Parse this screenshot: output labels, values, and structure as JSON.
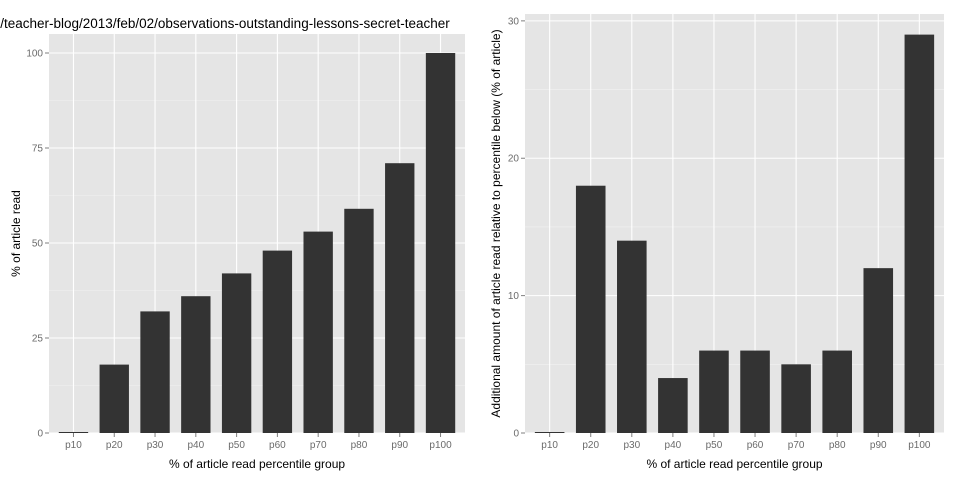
{
  "chart_data": [
    {
      "type": "bar",
      "title": "/teacher-blog/2013/feb/02/observations-outstanding-lessons-secret-teacher",
      "xlabel": "% of article read percentile group",
      "ylabel": "% of article read",
      "categories": [
        "p10",
        "p20",
        "p30",
        "p40",
        "p50",
        "p60",
        "p70",
        "p80",
        "p90",
        "p100"
      ],
      "values": [
        0,
        18,
        32,
        36,
        42,
        48,
        53,
        59,
        71,
        100
      ],
      "ylim": [
        0,
        105
      ],
      "yticks": [
        0,
        25,
        50,
        75,
        100
      ],
      "grid": true
    },
    {
      "type": "bar",
      "title": "",
      "xlabel": "% of article read percentile group",
      "ylabel": "Additional amount of article read relative to percentile below (% of article)",
      "categories": [
        "p10",
        "p20",
        "p30",
        "p40",
        "p50",
        "p60",
        "p70",
        "p80",
        "p90",
        "p100"
      ],
      "values": [
        0,
        18,
        14,
        4,
        6,
        6,
        5,
        6,
        12,
        29
      ],
      "ylim": [
        0,
        30.5
      ],
      "yticks": [
        0,
        10,
        20,
        30
      ],
      "grid": true
    }
  ]
}
